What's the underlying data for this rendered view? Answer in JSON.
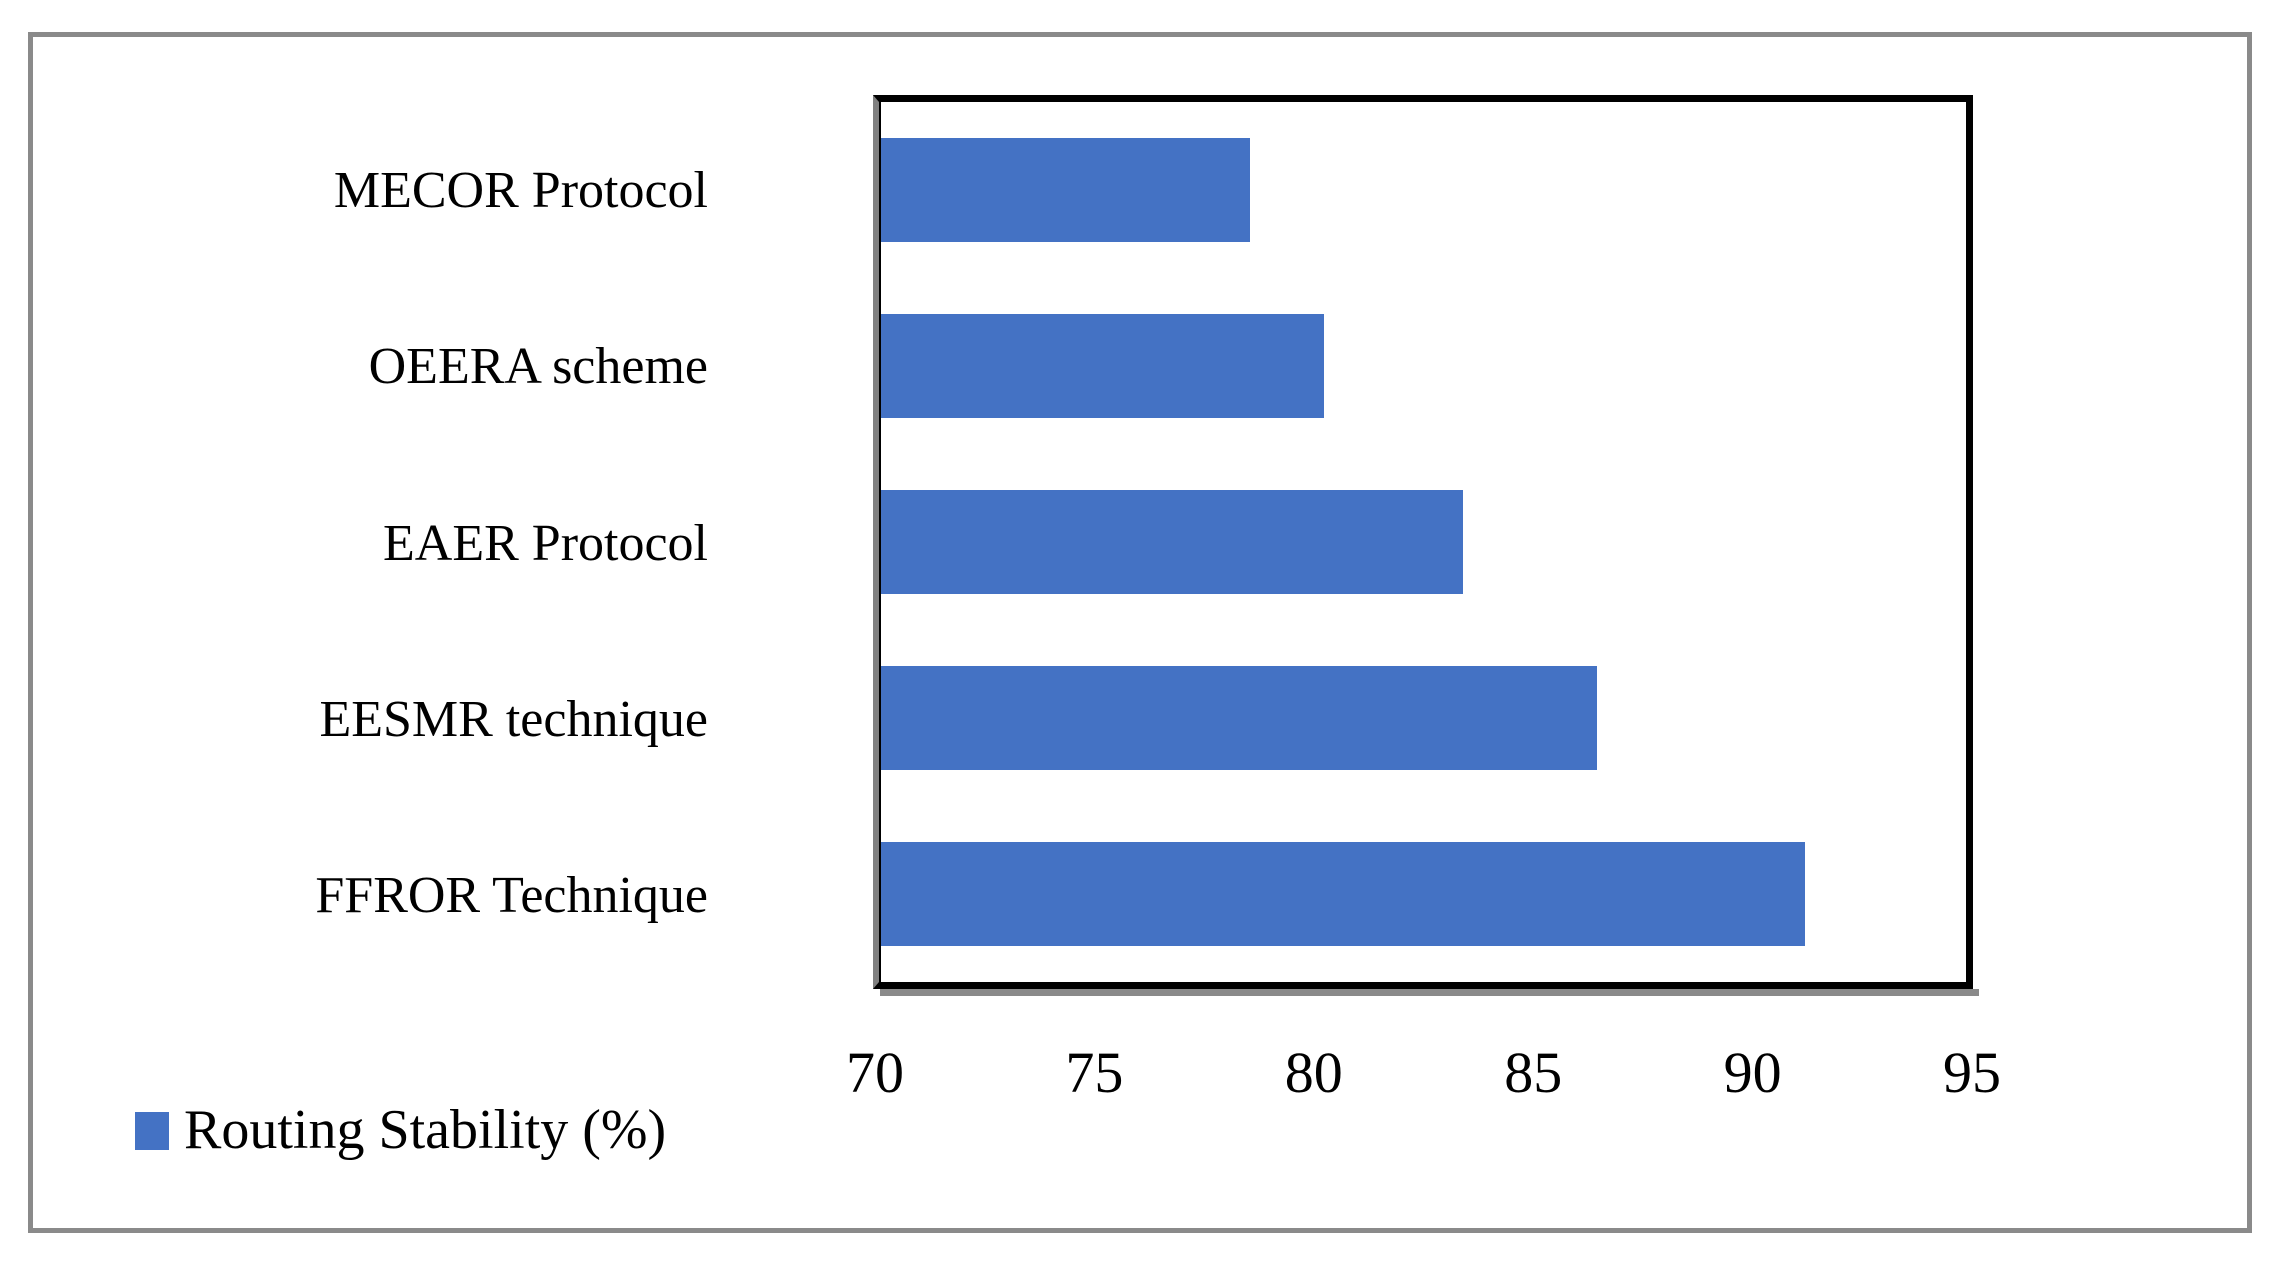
{
  "chart_data": {
    "type": "bar",
    "orientation": "horizontal",
    "title": "",
    "categories": [
      "MECOR Protocol",
      "OEERA scheme",
      "EAER Protocol",
      "EESMR technique",
      "FFROR Technique"
    ],
    "series": [
      {
        "name": "Routing Stability (%)",
        "values": [
          78.5,
          80.2,
          83.4,
          86.5,
          91.3
        ]
      }
    ],
    "xlabel": "",
    "ylabel": "",
    "xlim": [
      70,
      95
    ],
    "xticks": [
      70,
      75,
      80,
      85,
      90,
      95
    ],
    "grid": false,
    "legend_position": "bottom-left",
    "bar_color": "#4472C4"
  },
  "legend": {
    "label": "Routing Stability (%)",
    "swatch_color": "#4472C4"
  },
  "colors": {
    "bar": "#4472C4",
    "plot_border": "#000000",
    "axis_gray": "#808080",
    "frame_gray": "#8A8A8A",
    "background": "#FFFFFF"
  }
}
